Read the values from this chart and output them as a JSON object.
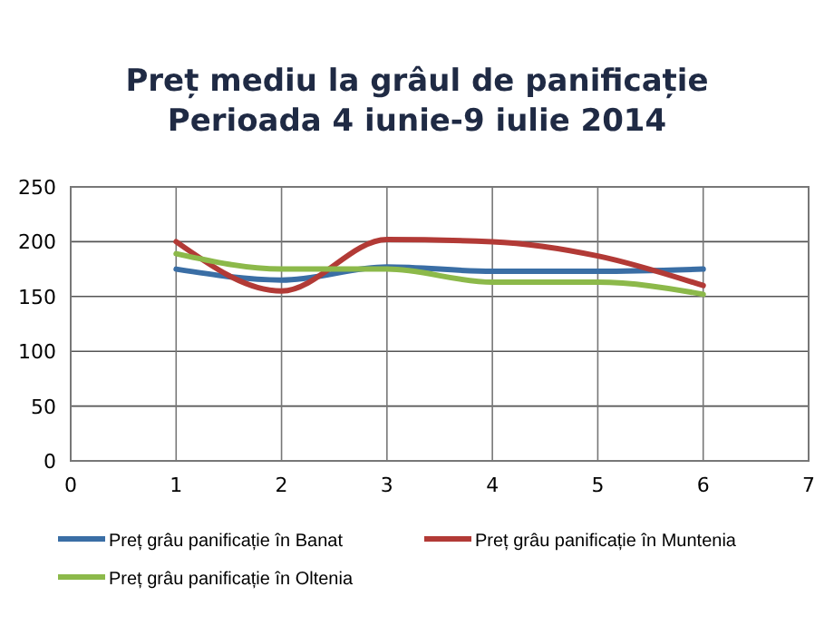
{
  "chart_data": {
    "type": "line",
    "title": "Preț mediu la grâul de panificație\nPerioada 4 iunie-9 iulie 2014",
    "x": [
      1,
      2,
      3,
      4,
      5,
      6
    ],
    "series": [
      {
        "name": "Preț grâu panificație în Banat",
        "color": "#3a6ea5",
        "values": [
          175,
          165,
          177,
          173,
          173,
          175
        ]
      },
      {
        "name": "Preț grâu panificație în Muntenia",
        "color": "#b23a36",
        "values": [
          200,
          155,
          202,
          200,
          187,
          160
        ]
      },
      {
        "name": "Preț grâu panificație în Oltenia",
        "color": "#8cb94a",
        "values": [
          189,
          175,
          175,
          163,
          163,
          152
        ]
      }
    ],
    "xlim": [
      0,
      7
    ],
    "xticks": [
      0,
      1,
      2,
      3,
      4,
      5,
      6,
      7
    ],
    "ylim": [
      0,
      250
    ],
    "yticks": [
      0,
      50,
      100,
      150,
      200,
      250
    ],
    "grid": true,
    "legend": "bottom",
    "marker": "none",
    "line_style": "solid"
  }
}
